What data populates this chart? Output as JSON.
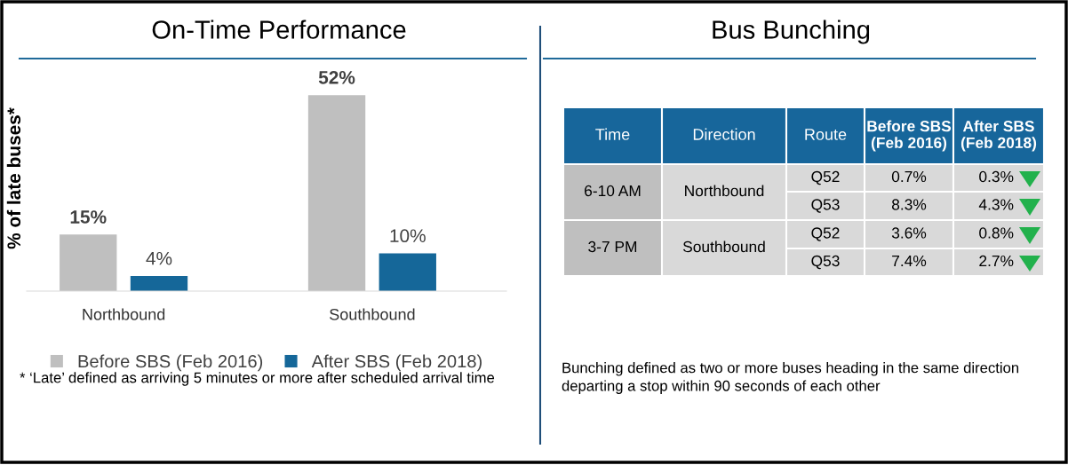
{
  "chart_data": [
    {
      "type": "bar",
      "title": "On-Time Performance",
      "ylabel": "% of late buses*",
      "categories": [
        "Northbound",
        "Southbound"
      ],
      "series": [
        {
          "name": "Before SBS (Feb 2016)",
          "color": "#bfbfbf",
          "values": [
            15,
            52
          ],
          "value_labels": [
            "15%",
            "52%"
          ]
        },
        {
          "name": "After SBS (Feb 2018)",
          "color": "#156799",
          "values": [
            4,
            10
          ],
          "value_labels": [
            "4%",
            "10%"
          ]
        }
      ],
      "legend": "bottom",
      "annotations": [
        "* ‘Late’ defined as arriving 5 minutes or more after scheduled arrival time"
      ]
    },
    {
      "type": "other",
      "title": "Bus Bunching",
      "annotations": [
        "Time",
        "Direction",
        "Route",
        "Before SBS\n(Feb 2016)",
        "After SBS\n(Feb 2018)",
        "6-10 AM",
        "Northbound",
        "Q52",
        "0.7%",
        "0.3%",
        "Q53",
        "8.3%",
        "4.3%",
        "3-7 PM",
        "Southbound",
        "Q52",
        "3.6%",
        "0.8%",
        "Q53",
        "7.4%",
        "2.7%",
        "Bunching defined as two or more buses heading in the same direction\ndeparting a stop within 90 seconds of each other"
      ]
    }
  ]
}
